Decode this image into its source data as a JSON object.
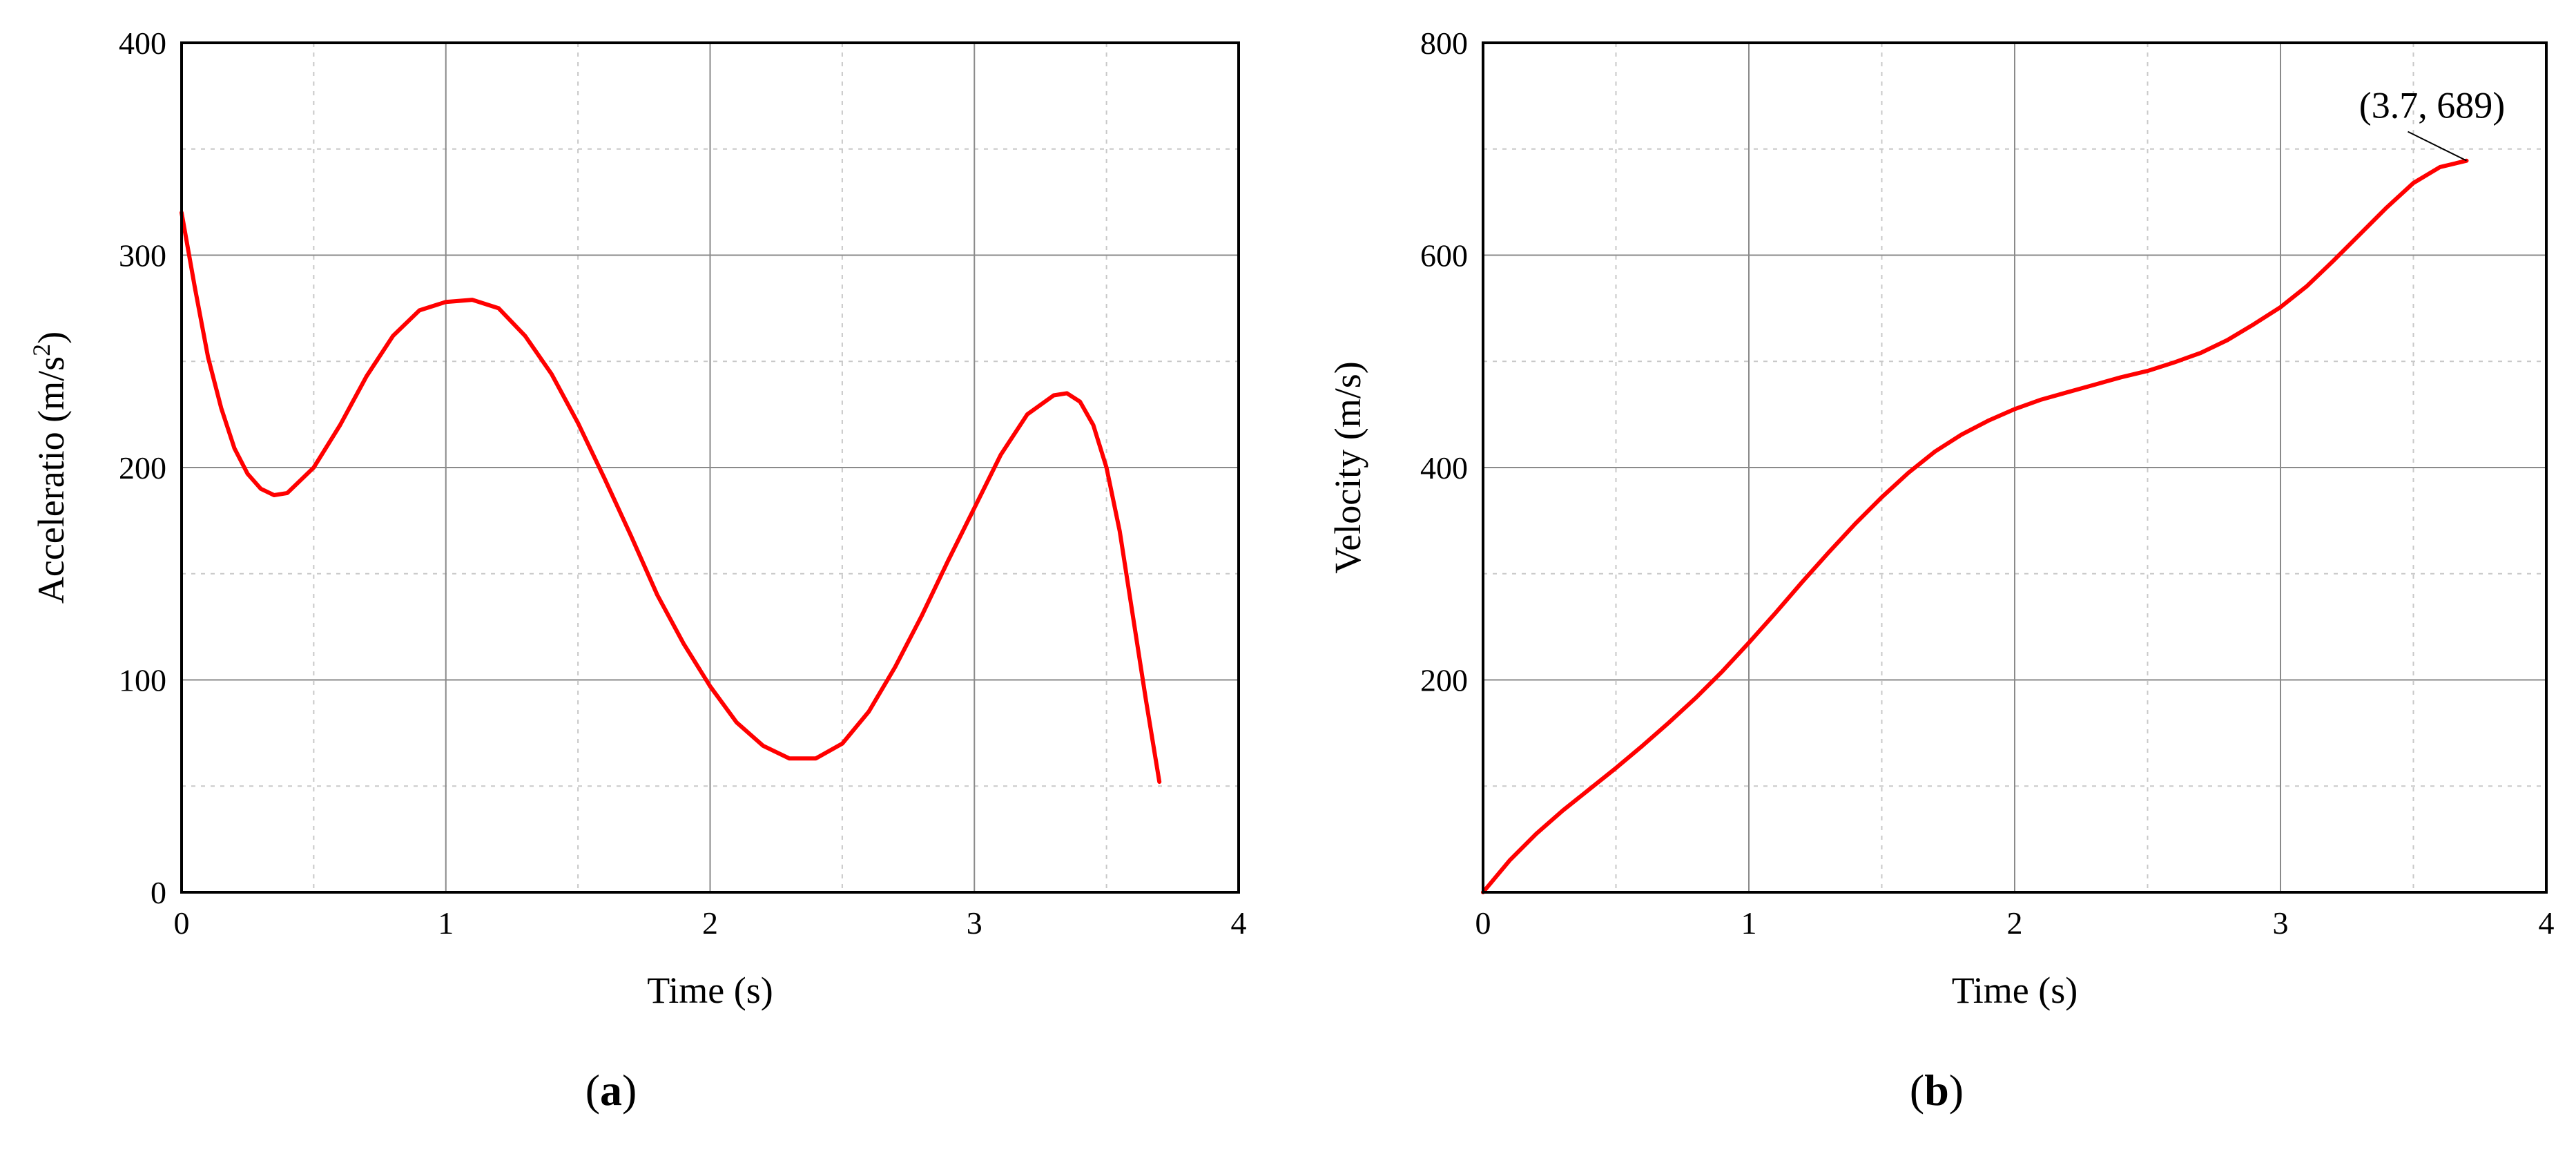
{
  "chart_data": [
    {
      "type": "line",
      "panel_label": "a",
      "xlabel": "Time (s)",
      "ylabel": "Acceleratio (m/s",
      "ylabel_superscript": "2",
      "ylabel_suffix": ")",
      "xlim": [
        0,
        4
      ],
      "ylim": [
        0,
        400
      ],
      "xticks": [
        0,
        1,
        2,
        3,
        4
      ],
      "yticks": [
        0,
        100,
        200,
        300,
        400
      ],
      "grid": "major solid, minor dashed",
      "line_color": "#ff0000",
      "series": [
        {
          "x": [
            0,
            0.05,
            0.1,
            0.15,
            0.2,
            0.25,
            0.3,
            0.35,
            0.4,
            0.5,
            0.6,
            0.7,
            0.8,
            0.9,
            1.0,
            1.1,
            1.2,
            1.3,
            1.4,
            1.5,
            1.6,
            1.7,
            1.8,
            1.9,
            2.0,
            2.1,
            2.2,
            2.3,
            2.4,
            2.5,
            2.6,
            2.7,
            2.8,
            2.9,
            3.0,
            3.1,
            3.2,
            3.3,
            3.35,
            3.4,
            3.45,
            3.5,
            3.55,
            3.6,
            3.65,
            3.7
          ],
          "y": [
            320,
            285,
            252,
            228,
            209,
            197,
            190,
            187,
            188,
            200,
            220,
            243,
            262,
            274,
            278,
            279,
            275,
            262,
            244,
            221,
            195,
            168,
            140,
            117,
            97,
            80,
            69,
            63,
            63,
            70,
            85,
            106,
            130,
            156,
            181,
            206,
            225,
            234,
            235,
            231,
            220,
            200,
            170,
            130,
            90,
            52
          ]
        }
      ]
    },
    {
      "type": "line",
      "panel_label": "b",
      "xlabel": "Time (s)",
      "ylabel": "Velocity (m/s)",
      "xlim": [
        0,
        4
      ],
      "ylim": [
        0,
        800
      ],
      "xticks": [
        0,
        1,
        2,
        3,
        4
      ],
      "yticks": [
        200,
        400,
        600,
        800
      ],
      "x_zero_label": "0",
      "grid": "major solid, minor dashed",
      "line_color": "#ff0000",
      "annotation": {
        "text": "(3.7, 689)",
        "x": 3.7,
        "y": 689
      },
      "series": [
        {
          "x": [
            0,
            0.1,
            0.2,
            0.3,
            0.4,
            0.5,
            0.6,
            0.7,
            0.8,
            0.9,
            1.0,
            1.1,
            1.2,
            1.3,
            1.4,
            1.5,
            1.6,
            1.7,
            1.8,
            1.9,
            2.0,
            2.1,
            2.2,
            2.3,
            2.4,
            2.5,
            2.6,
            2.7,
            2.8,
            2.9,
            3.0,
            3.1,
            3.2,
            3.3,
            3.4,
            3.5,
            3.6,
            3.7
          ],
          "y": [
            0,
            30,
            55,
            77,
            97,
            117,
            138,
            160,
            183,
            208,
            235,
            263,
            292,
            320,
            347,
            372,
            395,
            415,
            431,
            444,
            455,
            464,
            471,
            478,
            485,
            491,
            499,
            508,
            520,
            535,
            551,
            571,
            595,
            620,
            645,
            668,
            683,
            689
          ]
        }
      ]
    }
  ]
}
